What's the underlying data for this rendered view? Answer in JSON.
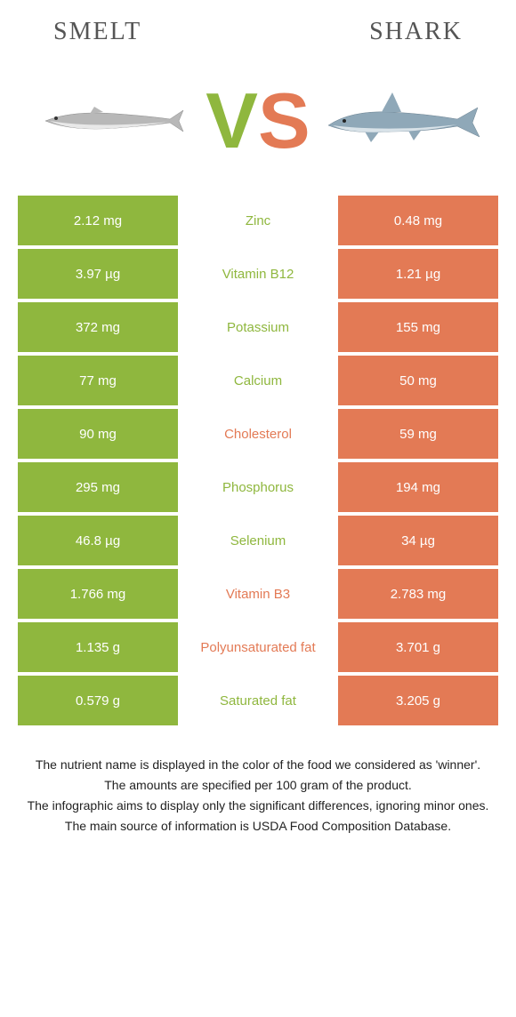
{
  "header": {
    "left_title": "Smelt",
    "right_title": "Shark"
  },
  "vs": {
    "v_color": "#8fb73e",
    "s_color": "#e37a55"
  },
  "colors": {
    "left_bg": "#8fb73e",
    "right_bg": "#e37a55",
    "left_text": "#8fb73e",
    "right_text": "#e37a55"
  },
  "rows": [
    {
      "left": "2.12 mg",
      "label": "Zinc",
      "right": "0.48 mg",
      "winner": "left"
    },
    {
      "left": "3.97 µg",
      "label": "Vitamin B12",
      "right": "1.21 µg",
      "winner": "left"
    },
    {
      "left": "372 mg",
      "label": "Potassium",
      "right": "155 mg",
      "winner": "left"
    },
    {
      "left": "77 mg",
      "label": "Calcium",
      "right": "50 mg",
      "winner": "left"
    },
    {
      "left": "90 mg",
      "label": "Cholesterol",
      "right": "59 mg",
      "winner": "right"
    },
    {
      "left": "295 mg",
      "label": "Phosphorus",
      "right": "194 mg",
      "winner": "left"
    },
    {
      "left": "46.8 µg",
      "label": "Selenium",
      "right": "34 µg",
      "winner": "left"
    },
    {
      "left": "1.766 mg",
      "label": "Vitamin B3",
      "right": "2.783 mg",
      "winner": "right"
    },
    {
      "left": "1.135 g",
      "label": "Polyunsaturated fat",
      "right": "3.701 g",
      "winner": "right"
    },
    {
      "left": "0.579 g",
      "label": "Saturated fat",
      "right": "3.205 g",
      "winner": "left"
    }
  ],
  "footer": {
    "line1": "The nutrient name is displayed in the color of the food we considered as 'winner'.",
    "line2": "The amounts are specified per 100 gram of the product.",
    "line3": "The infographic aims to display only the significant differences, ignoring minor ones.",
    "line4": "The main source of information is USDA Food Composition Database."
  },
  "smelt_svg": {
    "body_fill": "#b8b8b8",
    "belly_fill": "#e8e8e8",
    "stroke": "#888"
  },
  "shark_svg": {
    "body_fill": "#8fa8b8",
    "belly_fill": "#d8e2e8",
    "stroke": "#6a8090"
  }
}
